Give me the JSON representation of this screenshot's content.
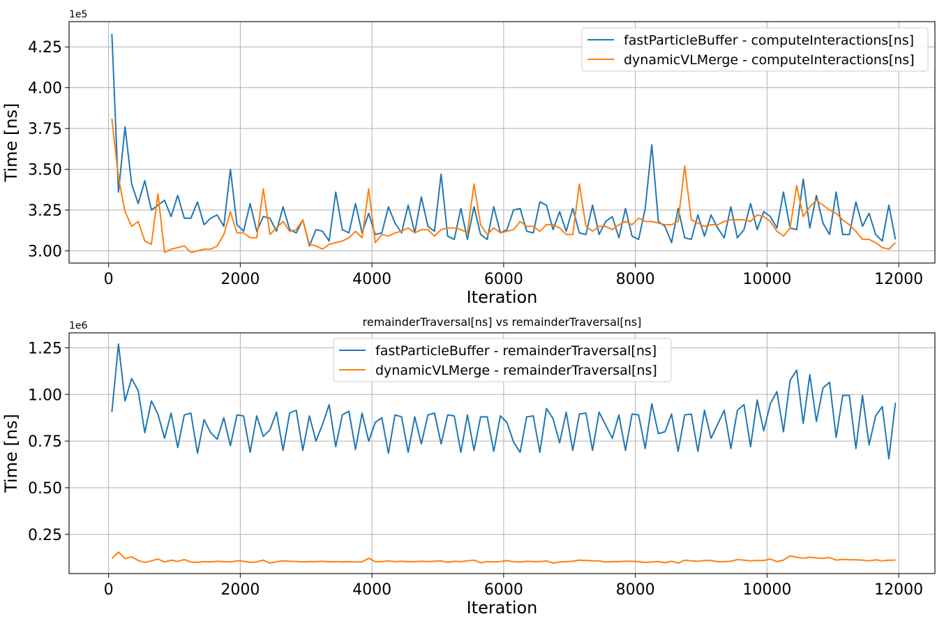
{
  "chart_data": [
    {
      "type": "line",
      "title": "",
      "xlabel": "Iteration",
      "ylabel": "Time [ns]",
      "y_offset_label": "1e5",
      "y_scale": 100000,
      "xlim": [
        -600,
        12550
      ],
      "ylim": [
        292500,
        440500
      ],
      "xticks": [
        0,
        2000,
        4000,
        6000,
        8000,
        10000,
        12000
      ],
      "yticks": [
        300000,
        325000,
        350000,
        375000,
        400000,
        425000
      ],
      "ytick_labels": [
        "3.00",
        "3.25",
        "3.50",
        "3.75",
        "4.00",
        "4.25"
      ],
      "grid": true,
      "legend": "upper-right",
      "x": [
        50,
        150,
        250,
        350,
        450,
        550,
        650,
        750,
        850,
        950,
        1050,
        1150,
        1250,
        1350,
        1450,
        1550,
        1650,
        1750,
        1850,
        1950,
        2050,
        2150,
        2250,
        2350,
        2450,
        2550,
        2650,
        2750,
        2850,
        2950,
        3050,
        3150,
        3250,
        3350,
        3450,
        3550,
        3650,
        3750,
        3850,
        3950,
        4050,
        4150,
        4250,
        4350,
        4450,
        4550,
        4650,
        4750,
        4850,
        4950,
        5050,
        5150,
        5250,
        5350,
        5450,
        5550,
        5650,
        5750,
        5850,
        5950,
        6050,
        6150,
        6250,
        6350,
        6450,
        6550,
        6650,
        6750,
        6850,
        6950,
        7050,
        7150,
        7250,
        7350,
        7450,
        7550,
        7650,
        7750,
        7850,
        7950,
        8050,
        8150,
        8250,
        8350,
        8450,
        8550,
        8650,
        8750,
        8850,
        8950,
        9050,
        9150,
        9250,
        9350,
        9450,
        9550,
        9650,
        9750,
        9850,
        9950,
        10050,
        10150,
        10250,
        10350,
        10450,
        10550,
        10650,
        10750,
        10850,
        10950,
        11050,
        11150,
        11250,
        11350,
        11450,
        11550,
        11650,
        11750,
        11850,
        11950
      ],
      "series": [
        {
          "name": "fastParticleBuffer - computeInteractions[ns]",
          "color": "#1f77b4",
          "values": [
            433000,
            336000,
            376000,
            341000,
            329000,
            343000,
            325000,
            328000,
            331000,
            321000,
            334000,
            320000,
            320000,
            330000,
            316000,
            320000,
            322000,
            315000,
            350000,
            316000,
            312000,
            329000,
            312000,
            321000,
            320000,
            312000,
            327000,
            313000,
            311000,
            319000,
            303000,
            313000,
            312000,
            306000,
            336000,
            313000,
            311000,
            329000,
            311000,
            323000,
            310000,
            311000,
            327000,
            317000,
            311000,
            328000,
            311000,
            333000,
            315000,
            312000,
            347000,
            309000,
            307000,
            326000,
            307000,
            327000,
            310000,
            307000,
            327000,
            311000,
            313000,
            325000,
            326000,
            312000,
            311000,
            330000,
            328000,
            313000,
            324000,
            312000,
            326000,
            311000,
            310000,
            328000,
            310000,
            318000,
            321000,
            308000,
            326000,
            309000,
            307000,
            326000,
            365000,
            318000,
            315000,
            305000,
            326000,
            308000,
            307000,
            322000,
            309000,
            322000,
            314000,
            308000,
            327000,
            308000,
            313000,
            329000,
            313000,
            324000,
            321000,
            314000,
            336000,
            314000,
            313000,
            344000,
            314000,
            334000,
            317000,
            310000,
            336000,
            310000,
            310000,
            330000,
            315000,
            323000,
            310000,
            306000,
            328000,
            307000
          ]
        },
        {
          "name": "dynamicVLMerge - computeInteractions[ns]",
          "color": "#ff7f0e",
          "values": [
            381000,
            345000,
            324000,
            315000,
            318000,
            306000,
            304000,
            335000,
            299000,
            301000,
            302000,
            303000,
            299000,
            300000,
            301000,
            301000,
            303000,
            310000,
            324000,
            311000,
            311000,
            308000,
            308000,
            338000,
            310000,
            314000,
            318000,
            312000,
            313000,
            319000,
            304000,
            303000,
            301000,
            304000,
            305000,
            306000,
            308000,
            312000,
            308000,
            338000,
            305000,
            310000,
            309000,
            311000,
            312000,
            314000,
            311000,
            313000,
            313000,
            309000,
            313000,
            314000,
            314000,
            313000,
            311000,
            341000,
            316000,
            310000,
            314000,
            311000,
            312000,
            313000,
            318000,
            315000,
            315000,
            312000,
            316000,
            316000,
            314000,
            310000,
            310000,
            341000,
            315000,
            312000,
            315000,
            315000,
            313000,
            316000,
            318000,
            316000,
            320000,
            318000,
            318000,
            317000,
            316000,
            316000,
            318000,
            352000,
            319000,
            317000,
            315000,
            316000,
            316000,
            318000,
            319000,
            319000,
            319000,
            318000,
            322000,
            321000,
            318000,
            312000,
            309000,
            314000,
            340000,
            321000,
            327000,
            331000,
            328000,
            325000,
            323000,
            319000,
            316000,
            312000,
            307000,
            307000,
            305000,
            302000,
            301000,
            305000
          ]
        }
      ]
    },
    {
      "type": "line",
      "title": "remainderTraversal[ns] vs remainderTraversal[ns]",
      "xlabel": "Iteration",
      "ylabel": "Time [ns]",
      "y_offset_label": "1e6",
      "y_scale": 1000000,
      "xlim": [
        -600,
        12550
      ],
      "ylim": [
        40000,
        1330000
      ],
      "xticks": [
        0,
        2000,
        4000,
        6000,
        8000,
        10000,
        12000
      ],
      "yticks": [
        250000,
        500000,
        750000,
        1000000,
        1250000
      ],
      "ytick_labels": [
        "0.25",
        "0.50",
        "0.75",
        "1.00",
        "1.25"
      ],
      "grid": true,
      "legend": "upper-center",
      "x": [
        50,
        150,
        250,
        350,
        450,
        550,
        650,
        750,
        850,
        950,
        1050,
        1150,
        1250,
        1350,
        1450,
        1550,
        1650,
        1750,
        1850,
        1950,
        2050,
        2150,
        2250,
        2350,
        2450,
        2550,
        2650,
        2750,
        2850,
        2950,
        3050,
        3150,
        3250,
        3350,
        3450,
        3550,
        3650,
        3750,
        3850,
        3950,
        4050,
        4150,
        4250,
        4350,
        4450,
        4550,
        4650,
        4750,
        4850,
        4950,
        5050,
        5150,
        5250,
        5350,
        5450,
        5550,
        5650,
        5750,
        5850,
        5950,
        6050,
        6150,
        6250,
        6350,
        6450,
        6550,
        6650,
        6750,
        6850,
        6950,
        7050,
        7150,
        7250,
        7350,
        7450,
        7550,
        7650,
        7750,
        7850,
        7950,
        8050,
        8150,
        8250,
        8350,
        8450,
        8550,
        8650,
        8750,
        8850,
        8950,
        9050,
        9150,
        9250,
        9350,
        9450,
        9550,
        9650,
        9750,
        9850,
        9950,
        10050,
        10150,
        10250,
        10350,
        10450,
        10550,
        10650,
        10750,
        10850,
        10950,
        11050,
        11150,
        11250,
        11350,
        11450,
        11550,
        11650,
        11750,
        11850,
        11950
      ],
      "series": [
        {
          "name": "fastParticleBuffer - remainderTraversal[ns]",
          "color": "#1f77b4",
          "values": [
            905000,
            1270000,
            965000,
            1085000,
            1020000,
            795000,
            965000,
            895000,
            765000,
            900000,
            715000,
            890000,
            900000,
            685000,
            865000,
            795000,
            760000,
            875000,
            725000,
            890000,
            885000,
            690000,
            885000,
            775000,
            810000,
            905000,
            700000,
            900000,
            915000,
            700000,
            885000,
            750000,
            840000,
            945000,
            720000,
            890000,
            910000,
            705000,
            900000,
            750000,
            850000,
            875000,
            685000,
            890000,
            880000,
            690000,
            880000,
            735000,
            890000,
            900000,
            735000,
            890000,
            885000,
            690000,
            890000,
            700000,
            880000,
            880000,
            695000,
            885000,
            850000,
            745000,
            690000,
            880000,
            885000,
            690000,
            925000,
            870000,
            740000,
            905000,
            700000,
            895000,
            900000,
            700000,
            905000,
            835000,
            765000,
            890000,
            700000,
            895000,
            890000,
            710000,
            950000,
            790000,
            800000,
            895000,
            695000,
            890000,
            895000,
            695000,
            915000,
            765000,
            840000,
            915000,
            710000,
            915000,
            945000,
            720000,
            970000,
            805000,
            950000,
            1015000,
            800000,
            1075000,
            1130000,
            845000,
            1105000,
            855000,
            1035000,
            1065000,
            770000,
            995000,
            995000,
            710000,
            995000,
            730000,
            885000,
            935000,
            655000,
            955000
          ]
        },
        {
          "name": "dynamicVLMerge - remainderTraversal[ns]",
          "color": "#ff7f0e",
          "values": [
            120000,
            155000,
            120000,
            130000,
            110000,
            100000,
            108000,
            118000,
            102000,
            112000,
            105000,
            115000,
            102000,
            100000,
            104000,
            102000,
            106000,
            104000,
            102000,
            108000,
            106000,
            100000,
            103000,
            112000,
            96000,
            104000,
            108000,
            106000,
            105000,
            102000,
            104000,
            104000,
            106000,
            103000,
            104000,
            102000,
            104000,
            102000,
            103000,
            122000,
            104000,
            104000,
            108000,
            104000,
            106000,
            104000,
            104000,
            106000,
            104000,
            106000,
            108000,
            100000,
            106000,
            104000,
            108000,
            112000,
            98000,
            104000,
            102000,
            104000,
            110000,
            103000,
            102000,
            106000,
            104000,
            104000,
            108000,
            96000,
            102000,
            104000,
            106000,
            112000,
            110000,
            108000,
            108000,
            102000,
            104000,
            104000,
            106000,
            106000,
            104000,
            100000,
            102000,
            104000,
            98000,
            106000,
            96000,
            112000,
            108000,
            106000,
            110000,
            110000,
            104000,
            104000,
            106000,
            115000,
            112000,
            108000,
            110000,
            110000,
            118000,
            104000,
            112000,
            135000,
            128000,
            122000,
            128000,
            124000,
            122000,
            126000,
            112000,
            116000,
            114000,
            114000,
            112000,
            108000,
            114000,
            108000,
            112000,
            112000
          ]
        }
      ]
    }
  ]
}
